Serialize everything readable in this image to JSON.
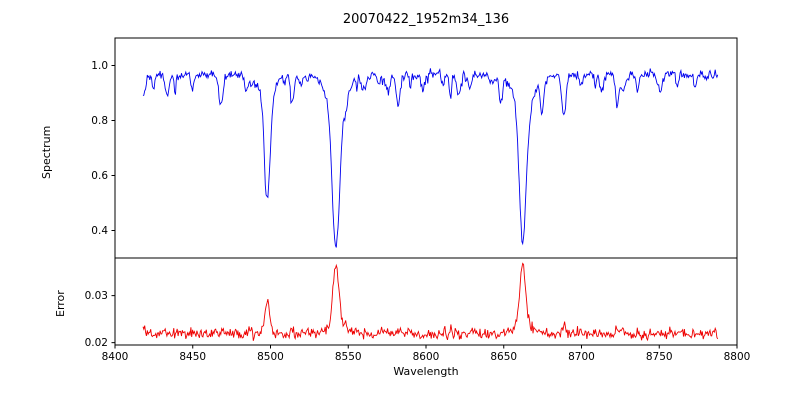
{
  "chart_data": [
    {
      "type": "line",
      "title": "20070422_1952m34_136",
      "xlabel": "Wavelength",
      "ylabel": "Spectrum",
      "color": "#0000ee",
      "xlim": [
        8400,
        8800
      ],
      "ylim": [
        0.3,
        1.1
      ],
      "x_data_range": [
        8418,
        8788
      ],
      "xticks": [
        8400,
        8450,
        8500,
        8550,
        8600,
        8650,
        8700,
        8750,
        8800
      ],
      "xtick_labels": [
        "8400",
        "8450",
        "8500",
        "8550",
        "8600",
        "8650",
        "8700",
        "8750",
        "8800"
      ],
      "yticks": [
        0.4,
        0.6,
        0.8,
        1.0
      ],
      "ytick_labels": [
        "0.4",
        "0.6",
        "0.8",
        "1.0"
      ],
      "grid": false,
      "legend": "none",
      "continuum": 0.975,
      "noise_amplitude": 0.007,
      "noise_lines": {
        "count": 85,
        "min_depth": 0.004,
        "max_depth": 0.075
      },
      "absorption_lines": [
        {
          "center": 8424.5,
          "depth": 0.055,
          "width": 1.0
        },
        {
          "center": 8434.0,
          "depth": 0.075,
          "width": 1.2
        },
        {
          "center": 8439.0,
          "depth": 0.05,
          "width": 0.9
        },
        {
          "center": 8468.0,
          "depth": 0.085,
          "width": 1.2
        },
        {
          "center": 8484.0,
          "depth": 0.05,
          "width": 0.9
        },
        {
          "center": 8498.0,
          "depth": 0.435,
          "width": 1.9
        },
        {
          "center": 8514.0,
          "depth": 0.115,
          "width": 1.2
        },
        {
          "center": 8542.1,
          "depth": 0.63,
          "width": 2.4
        },
        {
          "center": 8559.0,
          "depth": 0.05,
          "width": 0.9
        },
        {
          "center": 8582.0,
          "depth": 0.095,
          "width": 1.2
        },
        {
          "center": 8598.0,
          "depth": 0.065,
          "width": 1.0
        },
        {
          "center": 8611.0,
          "depth": 0.05,
          "width": 0.9
        },
        {
          "center": 8621.0,
          "depth": 0.095,
          "width": 1.2
        },
        {
          "center": 8648.0,
          "depth": 0.085,
          "width": 1.1
        },
        {
          "center": 8662.2,
          "depth": 0.615,
          "width": 2.2
        },
        {
          "center": 8674.5,
          "depth": 0.115,
          "width": 1.2
        },
        {
          "center": 8688.5,
          "depth": 0.165,
          "width": 1.4
        },
        {
          "center": 8713.0,
          "depth": 0.075,
          "width": 1.1
        },
        {
          "center": 8736.0,
          "depth": 0.065,
          "width": 1.0
        },
        {
          "center": 8751.0,
          "depth": 0.055,
          "width": 1.0
        },
        {
          "center": 8773.0,
          "depth": 0.05,
          "width": 0.9
        }
      ]
    },
    {
      "type": "line",
      "ylabel": "Error",
      "color": "#ee0000",
      "xlim": [
        8400,
        8800
      ],
      "ylim": [
        0.0195,
        0.038
      ],
      "yticks": [
        0.02,
        0.03
      ],
      "ytick_labels": [
        "0.02",
        "0.03"
      ],
      "grid": false,
      "legend": "none",
      "baseline": 0.0215,
      "noise_amplitude": 0.0005,
      "peaks": [
        {
          "center": 8498.0,
          "height": 0.0075,
          "width": 1.7
        },
        {
          "center": 8514.0,
          "height": 0.0008,
          "width": 1.2
        },
        {
          "center": 8542.1,
          "height": 0.0148,
          "width": 1.9
        },
        {
          "center": 8582.0,
          "height": 0.0008,
          "width": 1.2
        },
        {
          "center": 8662.2,
          "height": 0.0148,
          "width": 1.8
        },
        {
          "center": 8688.5,
          "height": 0.0022,
          "width": 1.4
        }
      ]
    }
  ]
}
